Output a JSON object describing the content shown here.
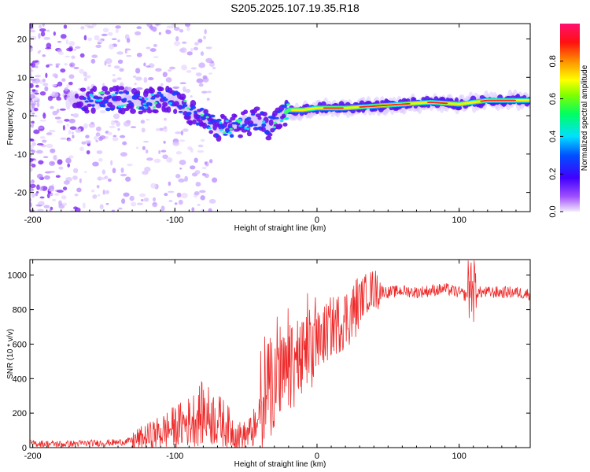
{
  "title": "S205.2025.107.19.35.R18",
  "chart_data": [
    {
      "type": "heatmap",
      "xlabel": "Height of straight line (km)",
      "ylabel": "Frequency (Hz)",
      "xlim": [
        -202,
        150
      ],
      "ylim": [
        -25,
        24
      ],
      "xticks": [
        -200,
        -100,
        0,
        100
      ],
      "xtick_labels": [
        "-200",
        "-100",
        "0",
        "100"
      ],
      "yticks": [
        -20,
        -10,
        0,
        10,
        20
      ],
      "ytick_labels": [
        "-20",
        "-10",
        "0",
        "10",
        "20"
      ],
      "colorbar": {
        "label": "Normalized spectral amplitude",
        "range": [
          0,
          1
        ],
        "ticks": [
          0.0,
          0.2,
          0.4,
          0.6,
          0.8
        ],
        "tick_labels": [
          "0.0",
          "0.2",
          "0.4",
          "0.6",
          "0.8"
        ],
        "colormap": "rainbow (violet → blue → cyan → green → yellow → orange → red → magenta)"
      },
      "ridge": {
        "x": [
          -160,
          -140,
          -120,
          -100,
          -90,
          -80,
          -70,
          -60,
          -50,
          -40,
          -35,
          -30,
          -25,
          -20,
          -10,
          0,
          10,
          20,
          40,
          60,
          80,
          100,
          120,
          150
        ],
        "y": [
          4,
          4,
          4,
          4,
          1,
          -1,
          -3,
          -3,
          -2,
          -1,
          -3,
          -1,
          0,
          1.5,
          1.5,
          2,
          2,
          2,
          2.5,
          3,
          3.5,
          3,
          4,
          4
        ]
      }
    },
    {
      "type": "line",
      "xlabel": "Height of straight line (km)",
      "ylabel": "SNR (10 * v/v)",
      "xlim": [
        -202,
        150
      ],
      "ylim": [
        0,
        1090
      ],
      "xticks": [
        -200,
        -100,
        0,
        100
      ],
      "xtick_labels": [
        "-200",
        "-100",
        "0",
        "100"
      ],
      "yticks": [
        0,
        200,
        400,
        600,
        800,
        1000
      ],
      "ytick_labels": [
        "0",
        "200",
        "400",
        "600",
        "800",
        "1000"
      ],
      "series": [
        {
          "color": "#ee2a2a",
          "x": [
            -202,
            -180,
            -160,
            -140,
            -130,
            -120,
            -110,
            -100,
            -90,
            -85,
            -80,
            -75,
            -70,
            -65,
            -60,
            -55,
            -50,
            -45,
            -40,
            -35,
            -30,
            -25,
            -20,
            -15,
            -10,
            -5,
            0,
            5,
            10,
            15,
            20,
            25,
            30,
            35,
            40,
            50,
            60,
            70,
            80,
            90,
            100,
            105,
            108,
            110,
            112,
            120,
            130,
            140,
            150
          ],
          "y": [
            25,
            20,
            25,
            30,
            40,
            60,
            90,
            120,
            150,
            180,
            200,
            180,
            160,
            140,
            100,
            70,
            70,
            100,
            200,
            300,
            350,
            400,
            420,
            480,
            500,
            550,
            600,
            650,
            700,
            720,
            750,
            780,
            850,
            900,
            920,
            900,
            910,
            900,
            910,
            920,
            900,
            880,
            950,
            920,
            900,
            900,
            900,
            900,
            890
          ]
        }
      ]
    }
  ]
}
